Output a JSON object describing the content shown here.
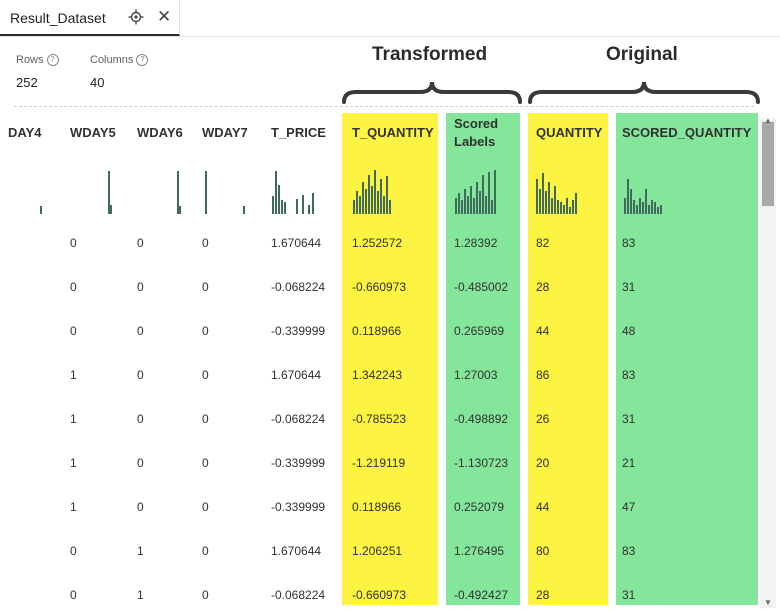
{
  "tab": {
    "title": "Result_Dataset"
  },
  "stats": {
    "rows_label": "Rows",
    "rows_value": "252",
    "columns_label": "Columns",
    "columns_value": "40",
    "help_glyph": "?"
  },
  "annotations": {
    "transformed": "Transformed",
    "original": "Original"
  },
  "columns": [
    {
      "header": "DAY4",
      "values": [
        "",
        "",
        "",
        "",
        "",
        "",
        "",
        "",
        ""
      ]
    },
    {
      "header": "WDAY5",
      "values": [
        "0",
        "0",
        "0",
        "1",
        "1",
        "1",
        "1",
        "0",
        "0"
      ]
    },
    {
      "header": "WDAY6",
      "values": [
        "0",
        "0",
        "0",
        "0",
        "0",
        "0",
        "0",
        "1",
        "1"
      ]
    },
    {
      "header": "WDAY7",
      "values": [
        "0",
        "0",
        "0",
        "0",
        "0",
        "0",
        "0",
        "0",
        "0"
      ]
    },
    {
      "header": "T_PRICE",
      "values": [
        "1.670644",
        "-0.068224",
        "-0.339999",
        "1.670644",
        "-0.068224",
        "-0.339999",
        "-0.339999",
        "1.670644",
        "-0.068224"
      ]
    },
    {
      "header": "T_QUANTITY",
      "values": [
        "1.252572",
        "-0.660973",
        "0.118966",
        "1.342243",
        "-0.785523",
        "-1.219119",
        "0.118966",
        "1.206251",
        "-0.660973"
      ]
    },
    {
      "header": "Scored Labels",
      "values": [
        "1.28392",
        "-0.485002",
        "0.265969",
        "1.27003",
        "-0.498892",
        "-1.130723",
        "0.252079",
        "1.276495",
        "-0.492427"
      ]
    },
    {
      "header": "QUANTITY",
      "values": [
        "82",
        "28",
        "44",
        "86",
        "26",
        "20",
        "44",
        "80",
        "28"
      ]
    },
    {
      "header": "SCORED_QUANTITY",
      "values": [
        "83",
        "31",
        "48",
        "83",
        "31",
        "21",
        "47",
        "83",
        "31"
      ]
    }
  ],
  "colors": {
    "transformed_highlight": "#fdf343",
    "scored_highlight": "#83e69b",
    "sparkline": "#3f6b5a"
  },
  "icons": {
    "pin": "pin-icon",
    "close": "close-icon",
    "help": "help-icon"
  }
}
